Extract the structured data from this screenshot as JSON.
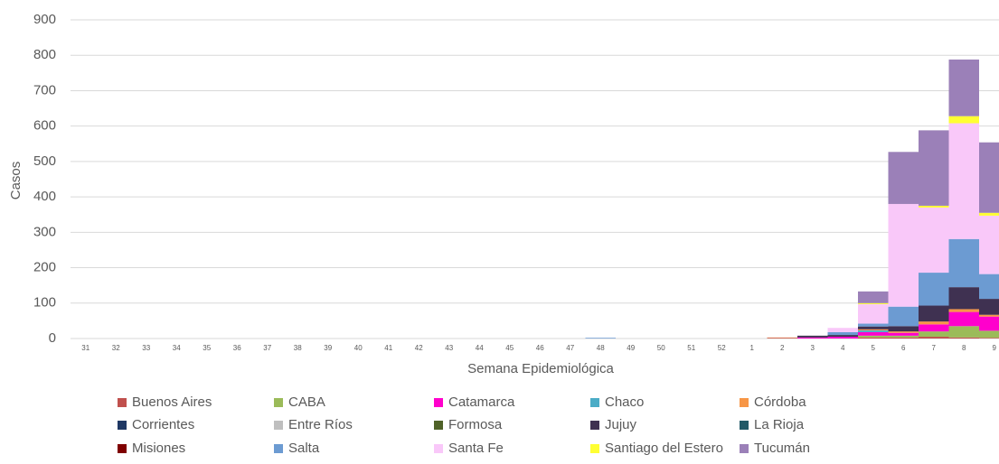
{
  "chart_data": {
    "type": "stacked-bar",
    "x_label": "Semana Epidemiológica",
    "y_label": "Casos",
    "categories": [
      "31",
      "32",
      "33",
      "34",
      "35",
      "36",
      "37",
      "38",
      "39",
      "40",
      "41",
      "42",
      "43",
      "44",
      "45",
      "46",
      "47",
      "48",
      "49",
      "50",
      "51",
      "52",
      "1",
      "2",
      "3",
      "4",
      "5",
      "6",
      "7",
      "8",
      "9"
    ],
    "ylim": [
      0,
      900
    ],
    "yticks": [
      0,
      100,
      200,
      300,
      400,
      500,
      600,
      700,
      800,
      900
    ],
    "grid": true,
    "series": [
      {
        "name": "Buenos Aires",
        "color": "#c0504d",
        "values": [
          0,
          0,
          0,
          0,
          0,
          0,
          0,
          0,
          0,
          0,
          0,
          0,
          0,
          0,
          0,
          0,
          0,
          0,
          0,
          0,
          0,
          0,
          0,
          2,
          0,
          0,
          3,
          3,
          5,
          3,
          2
        ]
      },
      {
        "name": "CABA",
        "color": "#9bbb59",
        "values": [
          0,
          0,
          0,
          0,
          0,
          0,
          0,
          0,
          0,
          0,
          0,
          0,
          0,
          0,
          0,
          0,
          0,
          0,
          0,
          0,
          0,
          0,
          0,
          0,
          0,
          0,
          5,
          5,
          15,
          32,
          20
        ]
      },
      {
        "name": "Catamarca",
        "color": "#ff00cc",
        "values": [
          0,
          0,
          0,
          0,
          0,
          0,
          0,
          0,
          0,
          0,
          0,
          0,
          0,
          0,
          0,
          0,
          0,
          0,
          0,
          0,
          0,
          0,
          0,
          0,
          3,
          5,
          10,
          8,
          20,
          40,
          40
        ]
      },
      {
        "name": "Chaco",
        "color": "#4bacc6",
        "values": [
          0,
          0,
          0,
          0,
          0,
          0,
          0,
          0,
          0,
          0,
          0,
          0,
          0,
          0,
          0,
          0,
          0,
          0,
          0,
          0,
          0,
          0,
          0,
          0,
          0,
          0,
          5,
          0,
          0,
          0,
          0
        ]
      },
      {
        "name": "Córdoba",
        "color": "#f79646",
        "values": [
          0,
          0,
          0,
          0,
          0,
          0,
          0,
          0,
          0,
          0,
          0,
          0,
          0,
          0,
          0,
          0,
          0,
          0,
          0,
          0,
          0,
          0,
          0,
          1,
          0,
          0,
          3,
          4,
          8,
          8,
          5
        ]
      },
      {
        "name": "Corrientes",
        "color": "#1f3864",
        "values": [
          0,
          0,
          0,
          0,
          0,
          0,
          0,
          0,
          0,
          0,
          0,
          0,
          0,
          0,
          0,
          0,
          0,
          0,
          0,
          0,
          0,
          0,
          0,
          0,
          0,
          0,
          0,
          0,
          0,
          0,
          0
        ]
      },
      {
        "name": "Entre Ríos",
        "color": "#bfbfbf",
        "values": [
          0,
          0,
          0,
          0,
          0,
          0,
          0,
          0,
          0,
          0,
          0,
          0,
          0,
          0,
          0,
          0,
          0,
          0,
          0,
          0,
          0,
          0,
          0,
          0,
          0,
          0,
          0,
          0,
          0,
          0,
          0
        ]
      },
      {
        "name": "Formosa",
        "color": "#4f6228",
        "values": [
          0,
          0,
          0,
          0,
          0,
          0,
          0,
          0,
          0,
          0,
          0,
          0,
          0,
          0,
          0,
          0,
          0,
          0,
          0,
          0,
          0,
          0,
          0,
          0,
          0,
          0,
          0,
          0,
          0,
          0,
          0
        ]
      },
      {
        "name": "Jujuy",
        "color": "#3f3151",
        "values": [
          0,
          0,
          0,
          0,
          0,
          0,
          0,
          0,
          0,
          0,
          0,
          0,
          0,
          0,
          0,
          0,
          0,
          0,
          0,
          0,
          0,
          0,
          0,
          0,
          5,
          5,
          8,
          15,
          45,
          62,
          45
        ]
      },
      {
        "name": "La Rioja",
        "color": "#215967",
        "values": [
          0,
          0,
          0,
          0,
          0,
          0,
          0,
          0,
          0,
          0,
          0,
          0,
          0,
          0,
          0,
          0,
          0,
          0,
          0,
          0,
          0,
          0,
          0,
          0,
          0,
          0,
          0,
          0,
          0,
          0,
          0
        ]
      },
      {
        "name": "Misiones",
        "color": "#7f0000",
        "values": [
          0,
          0,
          0,
          0,
          0,
          0,
          0,
          0,
          0,
          0,
          0,
          0,
          0,
          0,
          0,
          0,
          0,
          0,
          0,
          0,
          0,
          0,
          0,
          0,
          0,
          0,
          0,
          0,
          0,
          0,
          0
        ]
      },
      {
        "name": "Salta",
        "color": "#6c9bd2",
        "values": [
          0,
          0,
          0,
          0,
          0,
          0,
          0,
          0,
          0,
          0,
          0,
          0,
          0,
          0,
          0,
          0,
          0,
          2,
          0,
          0,
          0,
          0,
          0,
          0,
          0,
          8,
          8,
          55,
          93,
          136,
          70
        ]
      },
      {
        "name": "Santa Fe",
        "color": "#f9c8f9",
        "values": [
          0,
          0,
          0,
          0,
          0,
          0,
          0,
          0,
          0,
          0,
          0,
          0,
          0,
          0,
          0,
          0,
          0,
          0,
          0,
          0,
          0,
          0,
          0,
          0,
          0,
          12,
          55,
          290,
          184,
          327,
          165
        ]
      },
      {
        "name": "Santiago del Estero",
        "color": "#ffff33",
        "values": [
          0,
          0,
          0,
          0,
          0,
          0,
          0,
          0,
          0,
          0,
          0,
          0,
          0,
          0,
          0,
          0,
          0,
          0,
          0,
          0,
          0,
          0,
          0,
          0,
          0,
          0,
          3,
          0,
          5,
          20,
          8
        ]
      },
      {
        "name": "Tucumán",
        "color": "#9b80b8",
        "values": [
          0,
          0,
          0,
          0,
          0,
          0,
          0,
          0,
          0,
          0,
          0,
          0,
          0,
          0,
          0,
          0,
          0,
          0,
          0,
          0,
          0,
          0,
          0,
          0,
          0,
          0,
          33,
          147,
          213,
          160,
          199
        ]
      }
    ]
  }
}
